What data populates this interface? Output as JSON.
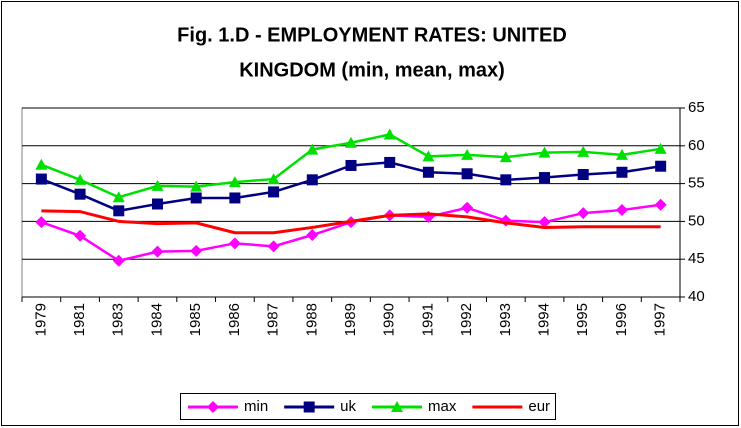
{
  "chart_data": {
    "type": "line",
    "title": [
      "Fig. 1.D - EMPLOYMENT RATES: UNITED",
      "KINGDOM (min, mean, max)"
    ],
    "categories": [
      "1979",
      "1981",
      "1983",
      "1984",
      "1985",
      "1986",
      "1987",
      "1988",
      "1989",
      "1990",
      "1991",
      "1992",
      "1993",
      "1994",
      "1995",
      "1996",
      "1997"
    ],
    "series": [
      {
        "name": "min",
        "color": "#ff00ff",
        "marker": "diamond",
        "values": [
          49.9,
          48.1,
          44.8,
          46.0,
          46.1,
          47.1,
          46.7,
          48.2,
          49.9,
          50.8,
          50.6,
          51.8,
          50.1,
          49.9,
          51.1,
          51.5,
          52.2
        ]
      },
      {
        "name": "uk",
        "color": "#000080",
        "marker": "square",
        "values": [
          55.6,
          53.6,
          51.4,
          52.3,
          53.1,
          53.1,
          53.9,
          55.5,
          57.4,
          57.8,
          56.5,
          56.3,
          55.5,
          55.8,
          56.2,
          56.5,
          57.3
        ]
      },
      {
        "name": "max",
        "color": "#00e000",
        "marker": "triangle",
        "values": [
          57.5,
          55.5,
          53.2,
          54.7,
          54.6,
          55.2,
          55.6,
          59.5,
          60.4,
          61.5,
          58.6,
          58.8,
          58.5,
          59.1,
          59.2,
          58.8,
          59.6
        ]
      },
      {
        "name": "eur",
        "color": "#ff0000",
        "marker": "none",
        "values": [
          51.4,
          51.3,
          50.0,
          49.7,
          49.8,
          48.5,
          48.5,
          49.2,
          50.0,
          50.8,
          51.0,
          50.6,
          49.8,
          49.2,
          49.3,
          49.3,
          49.3
        ]
      }
    ],
    "ylim": [
      40,
      65
    ],
    "yticks": [
      40,
      45,
      50,
      55,
      60,
      65
    ],
    "y_axis_side": "right",
    "grid": true,
    "legend": "bottom"
  }
}
